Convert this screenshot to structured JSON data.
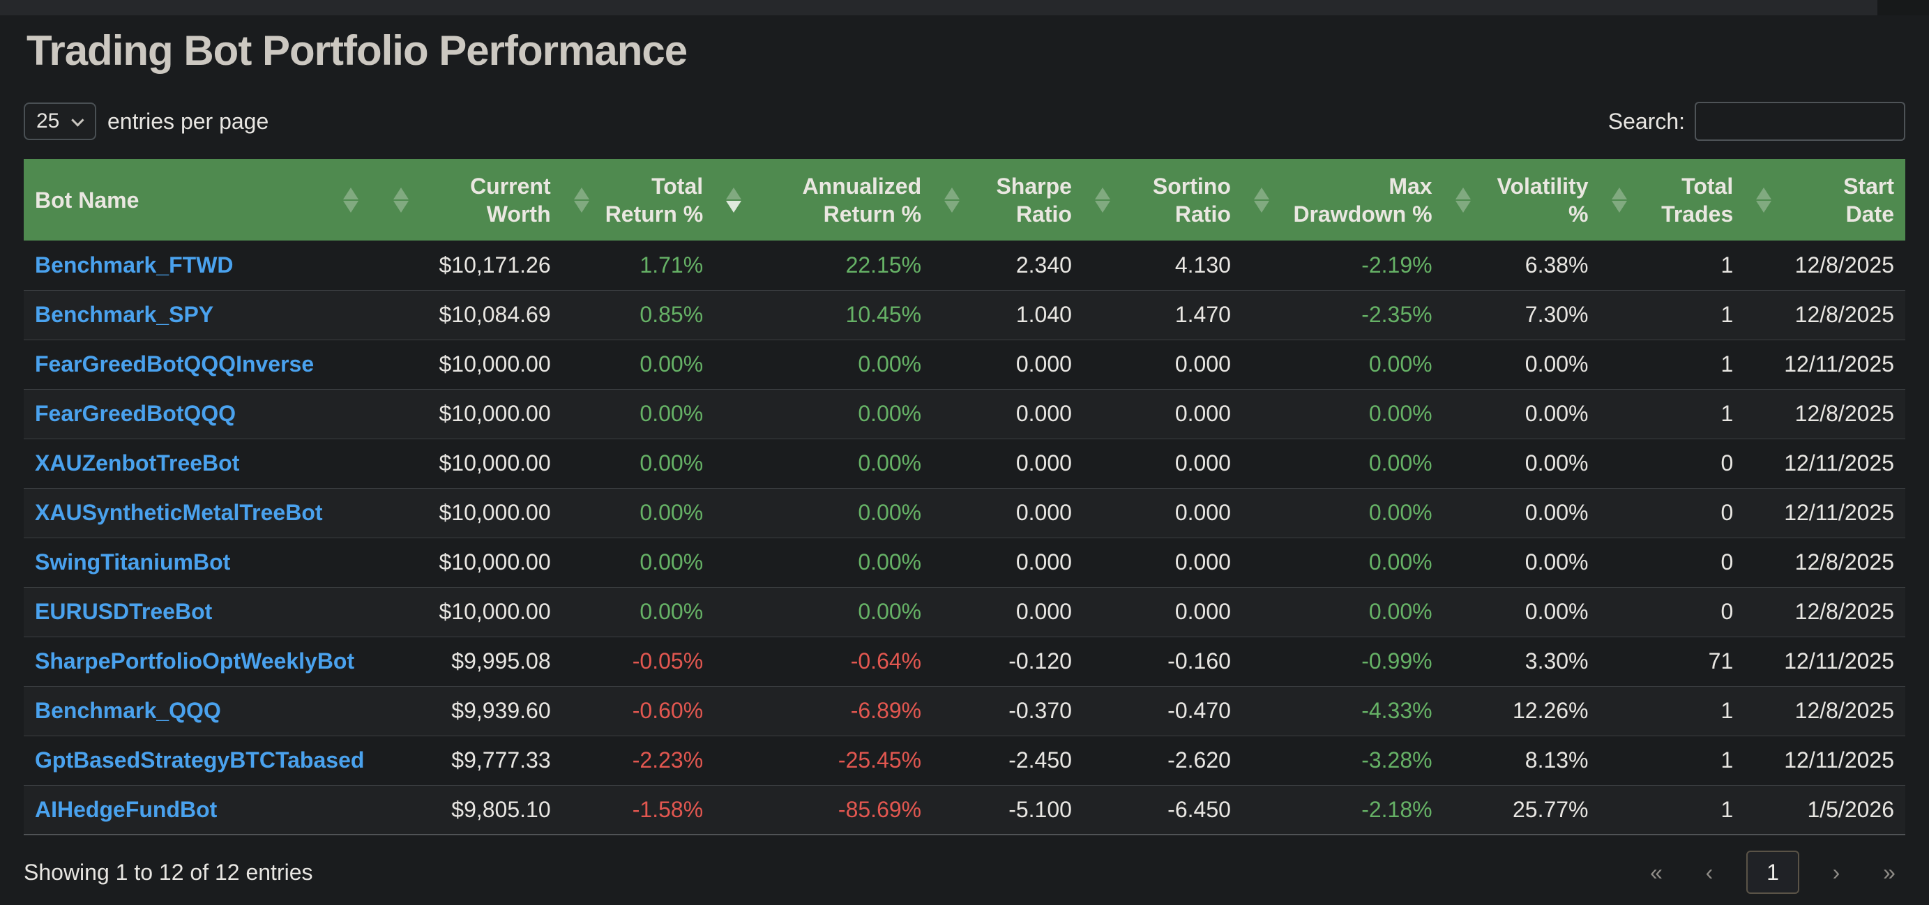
{
  "page": {
    "title": "Trading Bot Portfolio Performance"
  },
  "controls": {
    "page_length_value": "25",
    "page_length_label": "entries per page",
    "search_label": "Search:",
    "search_value": ""
  },
  "table": {
    "sort": {
      "column": "annualized_return",
      "direction": "desc"
    },
    "columns": [
      {
        "key": "bot_name",
        "label": "Bot Name",
        "align": "left",
        "sort": null
      },
      {
        "key": "current_worth",
        "label": "Current\nWorth",
        "align": "right",
        "sort": null
      },
      {
        "key": "total_return",
        "label": "Total\nReturn %",
        "align": "right",
        "sort": null
      },
      {
        "key": "annualized_return",
        "label": "Annualized\nReturn %",
        "align": "right",
        "sort": "desc"
      },
      {
        "key": "sharpe_ratio",
        "label": "Sharpe\nRatio",
        "align": "right",
        "sort": null
      },
      {
        "key": "sortino_ratio",
        "label": "Sortino\nRatio",
        "align": "right",
        "sort": null
      },
      {
        "key": "max_drawdown",
        "label": "Max\nDrawdown %",
        "align": "right",
        "sort": null
      },
      {
        "key": "volatility",
        "label": "Volatility\n%",
        "align": "right",
        "sort": null
      },
      {
        "key": "total_trades",
        "label": "Total\nTrades",
        "align": "right",
        "sort": null
      },
      {
        "key": "start_date",
        "label": "Start\nDate",
        "align": "right",
        "sort": null
      }
    ],
    "rows": [
      {
        "bot_name": "Benchmark_FTWD",
        "current_worth": "$10,171.26",
        "total_return": "1.71%",
        "annualized_return": "22.15%",
        "sharpe_ratio": "2.340",
        "sortino_ratio": "4.130",
        "max_drawdown": "-2.19%",
        "volatility": "6.38%",
        "total_trades": "1",
        "start_date": "12/8/2025"
      },
      {
        "bot_name": "Benchmark_SPY",
        "current_worth": "$10,084.69",
        "total_return": "0.85%",
        "annualized_return": "10.45%",
        "sharpe_ratio": "1.040",
        "sortino_ratio": "1.470",
        "max_drawdown": "-2.35%",
        "volatility": "7.30%",
        "total_trades": "1",
        "start_date": "12/8/2025"
      },
      {
        "bot_name": "FearGreedBotQQQInverse",
        "current_worth": "$10,000.00",
        "total_return": "0.00%",
        "annualized_return": "0.00%",
        "sharpe_ratio": "0.000",
        "sortino_ratio": "0.000",
        "max_drawdown": "0.00%",
        "volatility": "0.00%",
        "total_trades": "1",
        "start_date": "12/11/2025"
      },
      {
        "bot_name": "FearGreedBotQQQ",
        "current_worth": "$10,000.00",
        "total_return": "0.00%",
        "annualized_return": "0.00%",
        "sharpe_ratio": "0.000",
        "sortino_ratio": "0.000",
        "max_drawdown": "0.00%",
        "volatility": "0.00%",
        "total_trades": "1",
        "start_date": "12/8/2025"
      },
      {
        "bot_name": "XAUZenbotTreeBot",
        "current_worth": "$10,000.00",
        "total_return": "0.00%",
        "annualized_return": "0.00%",
        "sharpe_ratio": "0.000",
        "sortino_ratio": "0.000",
        "max_drawdown": "0.00%",
        "volatility": "0.00%",
        "total_trades": "0",
        "start_date": "12/11/2025"
      },
      {
        "bot_name": "XAUSyntheticMetalTreeBot",
        "current_worth": "$10,000.00",
        "total_return": "0.00%",
        "annualized_return": "0.00%",
        "sharpe_ratio": "0.000",
        "sortino_ratio": "0.000",
        "max_drawdown": "0.00%",
        "volatility": "0.00%",
        "total_trades": "0",
        "start_date": "12/11/2025"
      },
      {
        "bot_name": "SwingTitaniumBot",
        "current_worth": "$10,000.00",
        "total_return": "0.00%",
        "annualized_return": "0.00%",
        "sharpe_ratio": "0.000",
        "sortino_ratio": "0.000",
        "max_drawdown": "0.00%",
        "volatility": "0.00%",
        "total_trades": "0",
        "start_date": "12/8/2025"
      },
      {
        "bot_name": "EURUSDTreeBot",
        "current_worth": "$10,000.00",
        "total_return": "0.00%",
        "annualized_return": "0.00%",
        "sharpe_ratio": "0.000",
        "sortino_ratio": "0.000",
        "max_drawdown": "0.00%",
        "volatility": "0.00%",
        "total_trades": "0",
        "start_date": "12/8/2025"
      },
      {
        "bot_name": "SharpePortfolioOptWeeklyBot",
        "current_worth": "$9,995.08",
        "total_return": "-0.05%",
        "annualized_return": "-0.64%",
        "sharpe_ratio": "-0.120",
        "sortino_ratio": "-0.160",
        "max_drawdown": "-0.99%",
        "volatility": "3.30%",
        "total_trades": "71",
        "start_date": "12/11/2025"
      },
      {
        "bot_name": "Benchmark_QQQ",
        "current_worth": "$9,939.60",
        "total_return": "-0.60%",
        "annualized_return": "-6.89%",
        "sharpe_ratio": "-0.370",
        "sortino_ratio": "-0.470",
        "max_drawdown": "-4.33%",
        "volatility": "12.26%",
        "total_trades": "1",
        "start_date": "12/8/2025"
      },
      {
        "bot_name": "GptBasedStrategyBTCTabased",
        "current_worth": "$9,777.33",
        "total_return": "-2.23%",
        "annualized_return": "-25.45%",
        "sharpe_ratio": "-2.450",
        "sortino_ratio": "-2.620",
        "max_drawdown": "-3.28%",
        "volatility": "8.13%",
        "total_trades": "1",
        "start_date": "12/11/2025"
      },
      {
        "bot_name": "AIHedgeFundBot",
        "current_worth": "$9,805.10",
        "total_return": "-1.58%",
        "annualized_return": "-85.69%",
        "sharpe_ratio": "-5.100",
        "sortino_ratio": "-6.450",
        "max_drawdown": "-2.18%",
        "volatility": "25.77%",
        "total_trades": "1",
        "start_date": "1/5/2026"
      }
    ]
  },
  "footer": {
    "info": "Showing 1 to 12 of 12 entries",
    "pagination": {
      "first_label": "«",
      "prev_label": "‹",
      "current_page": "1",
      "next_label": "›",
      "last_label": "»"
    }
  },
  "colors": {
    "header_bg": "#4f8a4f",
    "link_blue": "#4aa2ee",
    "positive_green": "#66b266",
    "negative_red": "#e35750",
    "page_bg": "#1a1c1e"
  }
}
